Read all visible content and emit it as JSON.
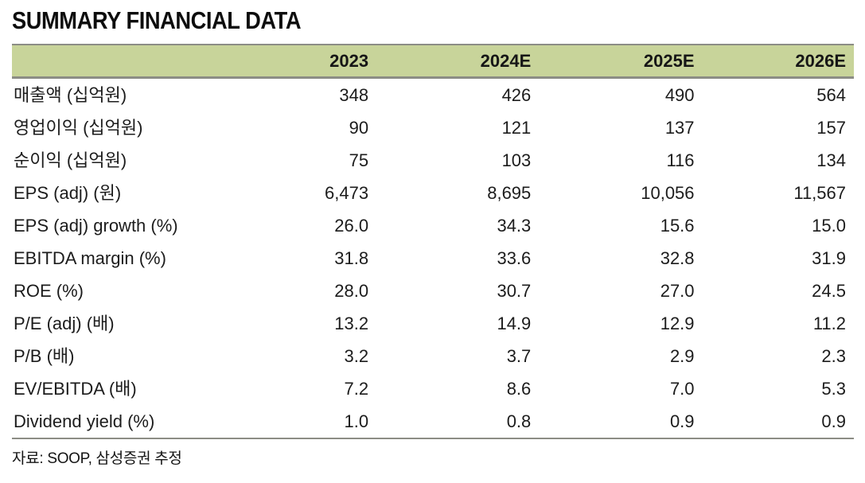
{
  "title": "SUMMARY FINANCIAL DATA",
  "colors": {
    "header_background": "#c8d49a",
    "rule_gray": "#8c8d85",
    "text": "#1a1a1a"
  },
  "chart_data": {
    "type": "table",
    "title": "SUMMARY FINANCIAL DATA",
    "columns": [
      "",
      "2023",
      "2024E",
      "2025E",
      "2026E"
    ],
    "rows": [
      [
        "매출액 (십억원)",
        "348",
        "426",
        "490",
        "564"
      ],
      [
        "영업이익 (십억원)",
        "90",
        "121",
        "137",
        "157"
      ],
      [
        "순이익 (십억원)",
        "75",
        "103",
        "116",
        "134"
      ],
      [
        "EPS (adj) (원)",
        "6,473",
        "8,695",
        "10,056",
        "11,567"
      ],
      [
        "EPS (adj) growth (%)",
        "26.0",
        "34.3",
        "15.6",
        "15.0"
      ],
      [
        "EBITDA margin (%)",
        "31.8",
        "33.6",
        "32.8",
        "31.9"
      ],
      [
        "ROE (%)",
        "28.0",
        "30.7",
        "27.0",
        "24.5"
      ],
      [
        "P/E (adj) (배)",
        "13.2",
        "14.9",
        "12.9",
        "11.2"
      ],
      [
        "P/B (배)",
        "3.2",
        "3.7",
        "2.9",
        "2.3"
      ],
      [
        "EV/EBITDA (배)",
        "7.2",
        "8.6",
        "7.0",
        "5.3"
      ],
      [
        "Dividend yield (%)",
        "1.0",
        "0.8",
        "0.9",
        "0.9"
      ]
    ],
    "source_note": "자료: SOOP, 삼성증권 추정"
  }
}
